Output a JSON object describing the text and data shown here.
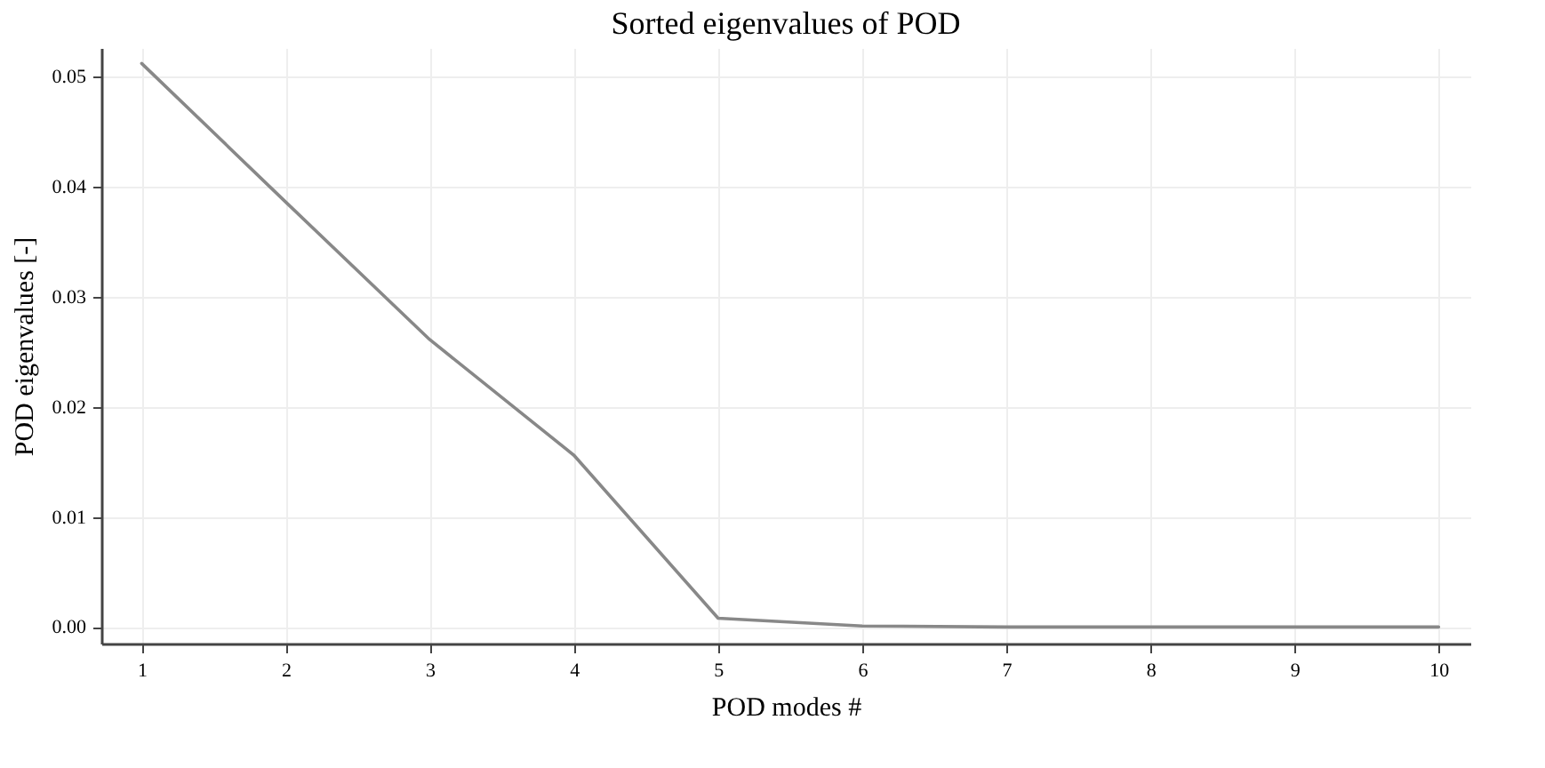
{
  "chart_data": {
    "type": "line",
    "title": "Sorted eigenvalues of POD",
    "xlabel": "POD modes #",
    "ylabel": "POD eigenvalues [-]",
    "x": [
      1,
      2,
      3,
      4,
      5,
      6,
      7,
      8,
      9,
      10
    ],
    "series": [
      {
        "color": "#888888",
        "values": [
          0.0512,
          0.0386,
          0.0261,
          0.0156,
          0.0008,
          0.0001,
          0,
          0,
          0,
          0
        ]
      }
    ],
    "xlim": [
      0.72,
      10.22
    ],
    "xticks": [
      1,
      2,
      3,
      4,
      5,
      6,
      7,
      8,
      9,
      10
    ],
    "ylim": [
      -0.0015,
      0.0526
    ],
    "yticks": [
      {
        "value": 0,
        "label": "0.00"
      },
      {
        "value": 0.01,
        "label": "0.01"
      },
      {
        "value": 0.02,
        "label": "0.02"
      },
      {
        "value": 0.03,
        "label": "0.03"
      },
      {
        "value": 0.04,
        "label": "0.04"
      },
      {
        "value": 0.05,
        "label": "0.05"
      }
    ],
    "grid": true,
    "line_style": "solid"
  }
}
